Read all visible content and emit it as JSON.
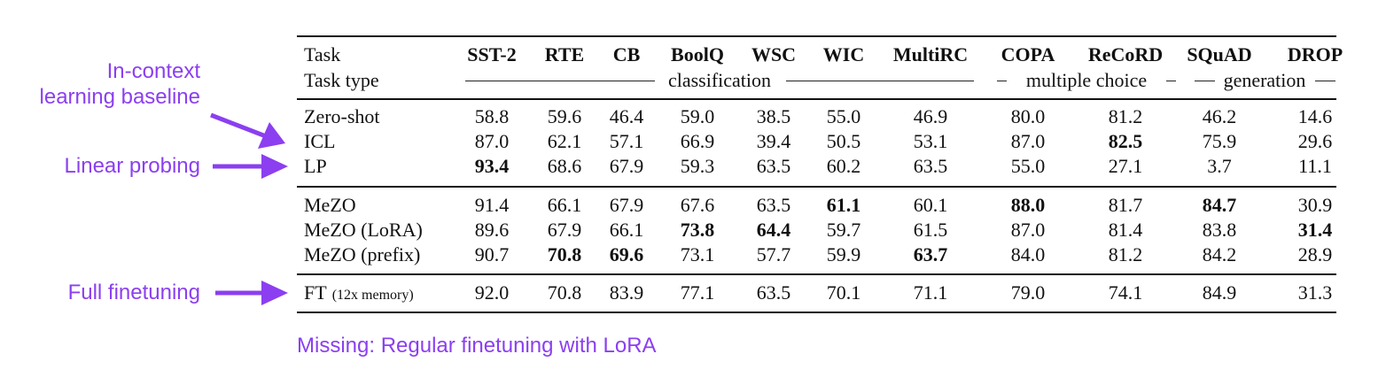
{
  "annotations": {
    "icl": "In-context\nlearning baseline",
    "lp": "Linear probing",
    "ft": "Full finetuning",
    "missing": "Missing: Regular finetuning with LoRA",
    "color": "#8b3ff0"
  },
  "table": {
    "header_task": "Task",
    "header_type": "Task type",
    "columns": [
      "SST-2",
      "RTE",
      "CB",
      "BoolQ",
      "WSC",
      "WIC",
      "MultiRC",
      "COPA",
      "ReCoRD",
      "SQuAD",
      "DROP"
    ],
    "groups": [
      "classification",
      "multiple choice",
      "generation"
    ],
    "rows": [
      {
        "method": "Zero-shot",
        "values": [
          "58.8",
          "59.6",
          "46.4",
          "59.0",
          "38.5",
          "55.0",
          "46.9",
          "80.0",
          "81.2",
          "46.2",
          "14.6"
        ],
        "bold": []
      },
      {
        "method": "ICL",
        "values": [
          "87.0",
          "62.1",
          "57.1",
          "66.9",
          "39.4",
          "50.5",
          "53.1",
          "87.0",
          "82.5",
          "75.9",
          "29.6"
        ],
        "bold": [
          8
        ]
      },
      {
        "method": "LP",
        "values": [
          "93.4",
          "68.6",
          "67.9",
          "59.3",
          "63.5",
          "60.2",
          "63.5",
          "55.0",
          "27.1",
          "3.7",
          "11.1"
        ],
        "bold": [
          0
        ]
      },
      {
        "method": "MeZO",
        "values": [
          "91.4",
          "66.1",
          "67.9",
          "67.6",
          "63.5",
          "61.1",
          "60.1",
          "88.0",
          "81.7",
          "84.7",
          "30.9"
        ],
        "bold": [
          5,
          7,
          9
        ]
      },
      {
        "method": "MeZO (LoRA)",
        "values": [
          "89.6",
          "67.9",
          "66.1",
          "73.8",
          "64.4",
          "59.7",
          "61.5",
          "87.0",
          "81.4",
          "83.8",
          "31.4"
        ],
        "bold": [
          3,
          4,
          10
        ]
      },
      {
        "method": "MeZO (prefix)",
        "values": [
          "90.7",
          "70.8",
          "69.6",
          "73.1",
          "57.7",
          "59.9",
          "63.7",
          "84.0",
          "81.2",
          "84.2",
          "28.9"
        ],
        "bold": [
          1,
          2,
          6
        ]
      },
      {
        "method": "FT",
        "method_note": "(12x memory)",
        "values": [
          "92.0",
          "70.8",
          "83.9",
          "77.1",
          "63.5",
          "70.1",
          "71.1",
          "79.0",
          "74.1",
          "84.9",
          "31.3"
        ],
        "bold": []
      }
    ]
  }
}
